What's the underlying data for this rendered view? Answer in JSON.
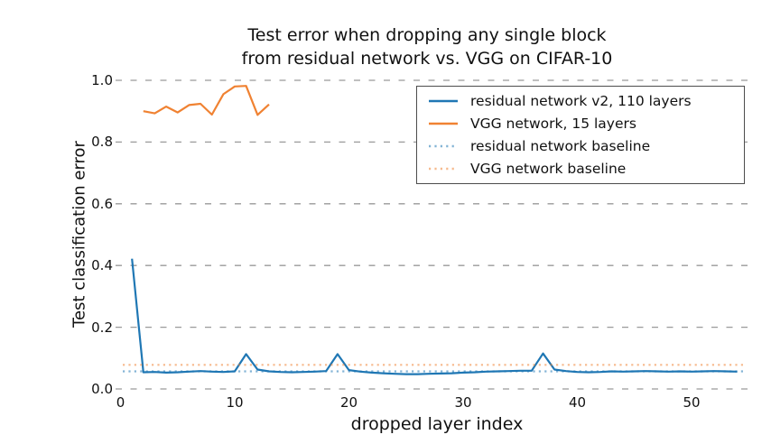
{
  "title": {
    "line1": "Test error when dropping any single block",
    "line2": "from residual network vs. VGG on CIFAR-10"
  },
  "axes": {
    "xlabel": "dropped layer index",
    "ylabel": "Test classification error",
    "x_tick_labels": [
      "0",
      "10",
      "20",
      "30",
      "40",
      "50"
    ],
    "x_tick_values": [
      0,
      10,
      20,
      30,
      40,
      50
    ],
    "y_tick_labels": [
      "0.0",
      "0.2",
      "0.4",
      "0.6",
      "0.8",
      "1.0"
    ],
    "y_tick_values": [
      0.0,
      0.2,
      0.4,
      0.6,
      0.8,
      1.0
    ]
  },
  "legend": {
    "entries": [
      {
        "label": "residual network v2, 110 layers",
        "color": "#1f77b4",
        "style": "solid"
      },
      {
        "label": "VGG network, 15 layers",
        "color": "#f08232",
        "style": "solid"
      },
      {
        "label": "residual network baseline",
        "color": "#1f77b4",
        "style": "dotted"
      },
      {
        "label": "VGG network baseline",
        "color": "#f08232",
        "style": "dotted"
      }
    ]
  },
  "colors": {
    "residual_line": "#1f77b4",
    "vgg_line": "#f08232",
    "residual_baseline": "#1f77b4",
    "vgg_baseline": "#f08232",
    "baseline_opacity": 0.55,
    "gridline": "#9a9a9a",
    "text": "#111111",
    "legend_border": "#4d4d4d",
    "background": "#ffffff"
  },
  "chart_data": {
    "type": "line",
    "title": "Test error when dropping any single block from residual network vs. VGG on CIFAR-10",
    "xlabel": "dropped layer index",
    "ylabel": "Test classification error",
    "xlim": [
      -0.6,
      55.2
    ],
    "ylim": [
      0.0,
      1.02
    ],
    "grid": "horizontal-dashed",
    "legend_position": "upper right",
    "series": [
      {
        "name": "residual network v2, 110 layers",
        "style": "solid",
        "x": [
          1,
          2,
          3,
          4,
          5,
          6,
          7,
          8,
          9,
          10,
          11,
          12,
          13,
          14,
          15,
          16,
          17,
          18,
          19,
          20,
          21,
          22,
          23,
          24,
          25,
          26,
          27,
          28,
          29,
          30,
          31,
          32,
          33,
          34,
          35,
          36,
          37,
          38,
          39,
          40,
          41,
          42,
          43,
          44,
          45,
          46,
          47,
          48,
          49,
          50,
          51,
          52,
          53,
          54
        ],
        "y": [
          0.422,
          0.054,
          0.055,
          0.053,
          0.054,
          0.056,
          0.058,
          0.056,
          0.055,
          0.057,
          0.113,
          0.063,
          0.057,
          0.055,
          0.054,
          0.055,
          0.056,
          0.058,
          0.113,
          0.061,
          0.056,
          0.053,
          0.051,
          0.049,
          0.048,
          0.048,
          0.049,
          0.05,
          0.051,
          0.053,
          0.054,
          0.056,
          0.057,
          0.058,
          0.059,
          0.059,
          0.115,
          0.063,
          0.058,
          0.055,
          0.054,
          0.055,
          0.057,
          0.056,
          0.057,
          0.058,
          0.057,
          0.056,
          0.057,
          0.056,
          0.057,
          0.058,
          0.057,
          0.056
        ]
      },
      {
        "name": "VGG network, 15 layers",
        "style": "solid",
        "x": [
          2,
          3,
          4,
          5,
          6,
          7,
          8,
          9,
          10,
          11,
          12,
          13
        ],
        "y": [
          0.9,
          0.893,
          0.915,
          0.896,
          0.92,
          0.924,
          0.889,
          0.955,
          0.98,
          0.982,
          0.888,
          0.922
        ]
      },
      {
        "name": "residual network baseline",
        "style": "dotted",
        "x": [
          0.2,
          54.8
        ],
        "y": [
          0.057,
          0.057
        ]
      },
      {
        "name": "VGG network baseline",
        "style": "dotted",
        "x": [
          0.2,
          54.8
        ],
        "y": [
          0.078,
          0.078
        ]
      }
    ]
  }
}
